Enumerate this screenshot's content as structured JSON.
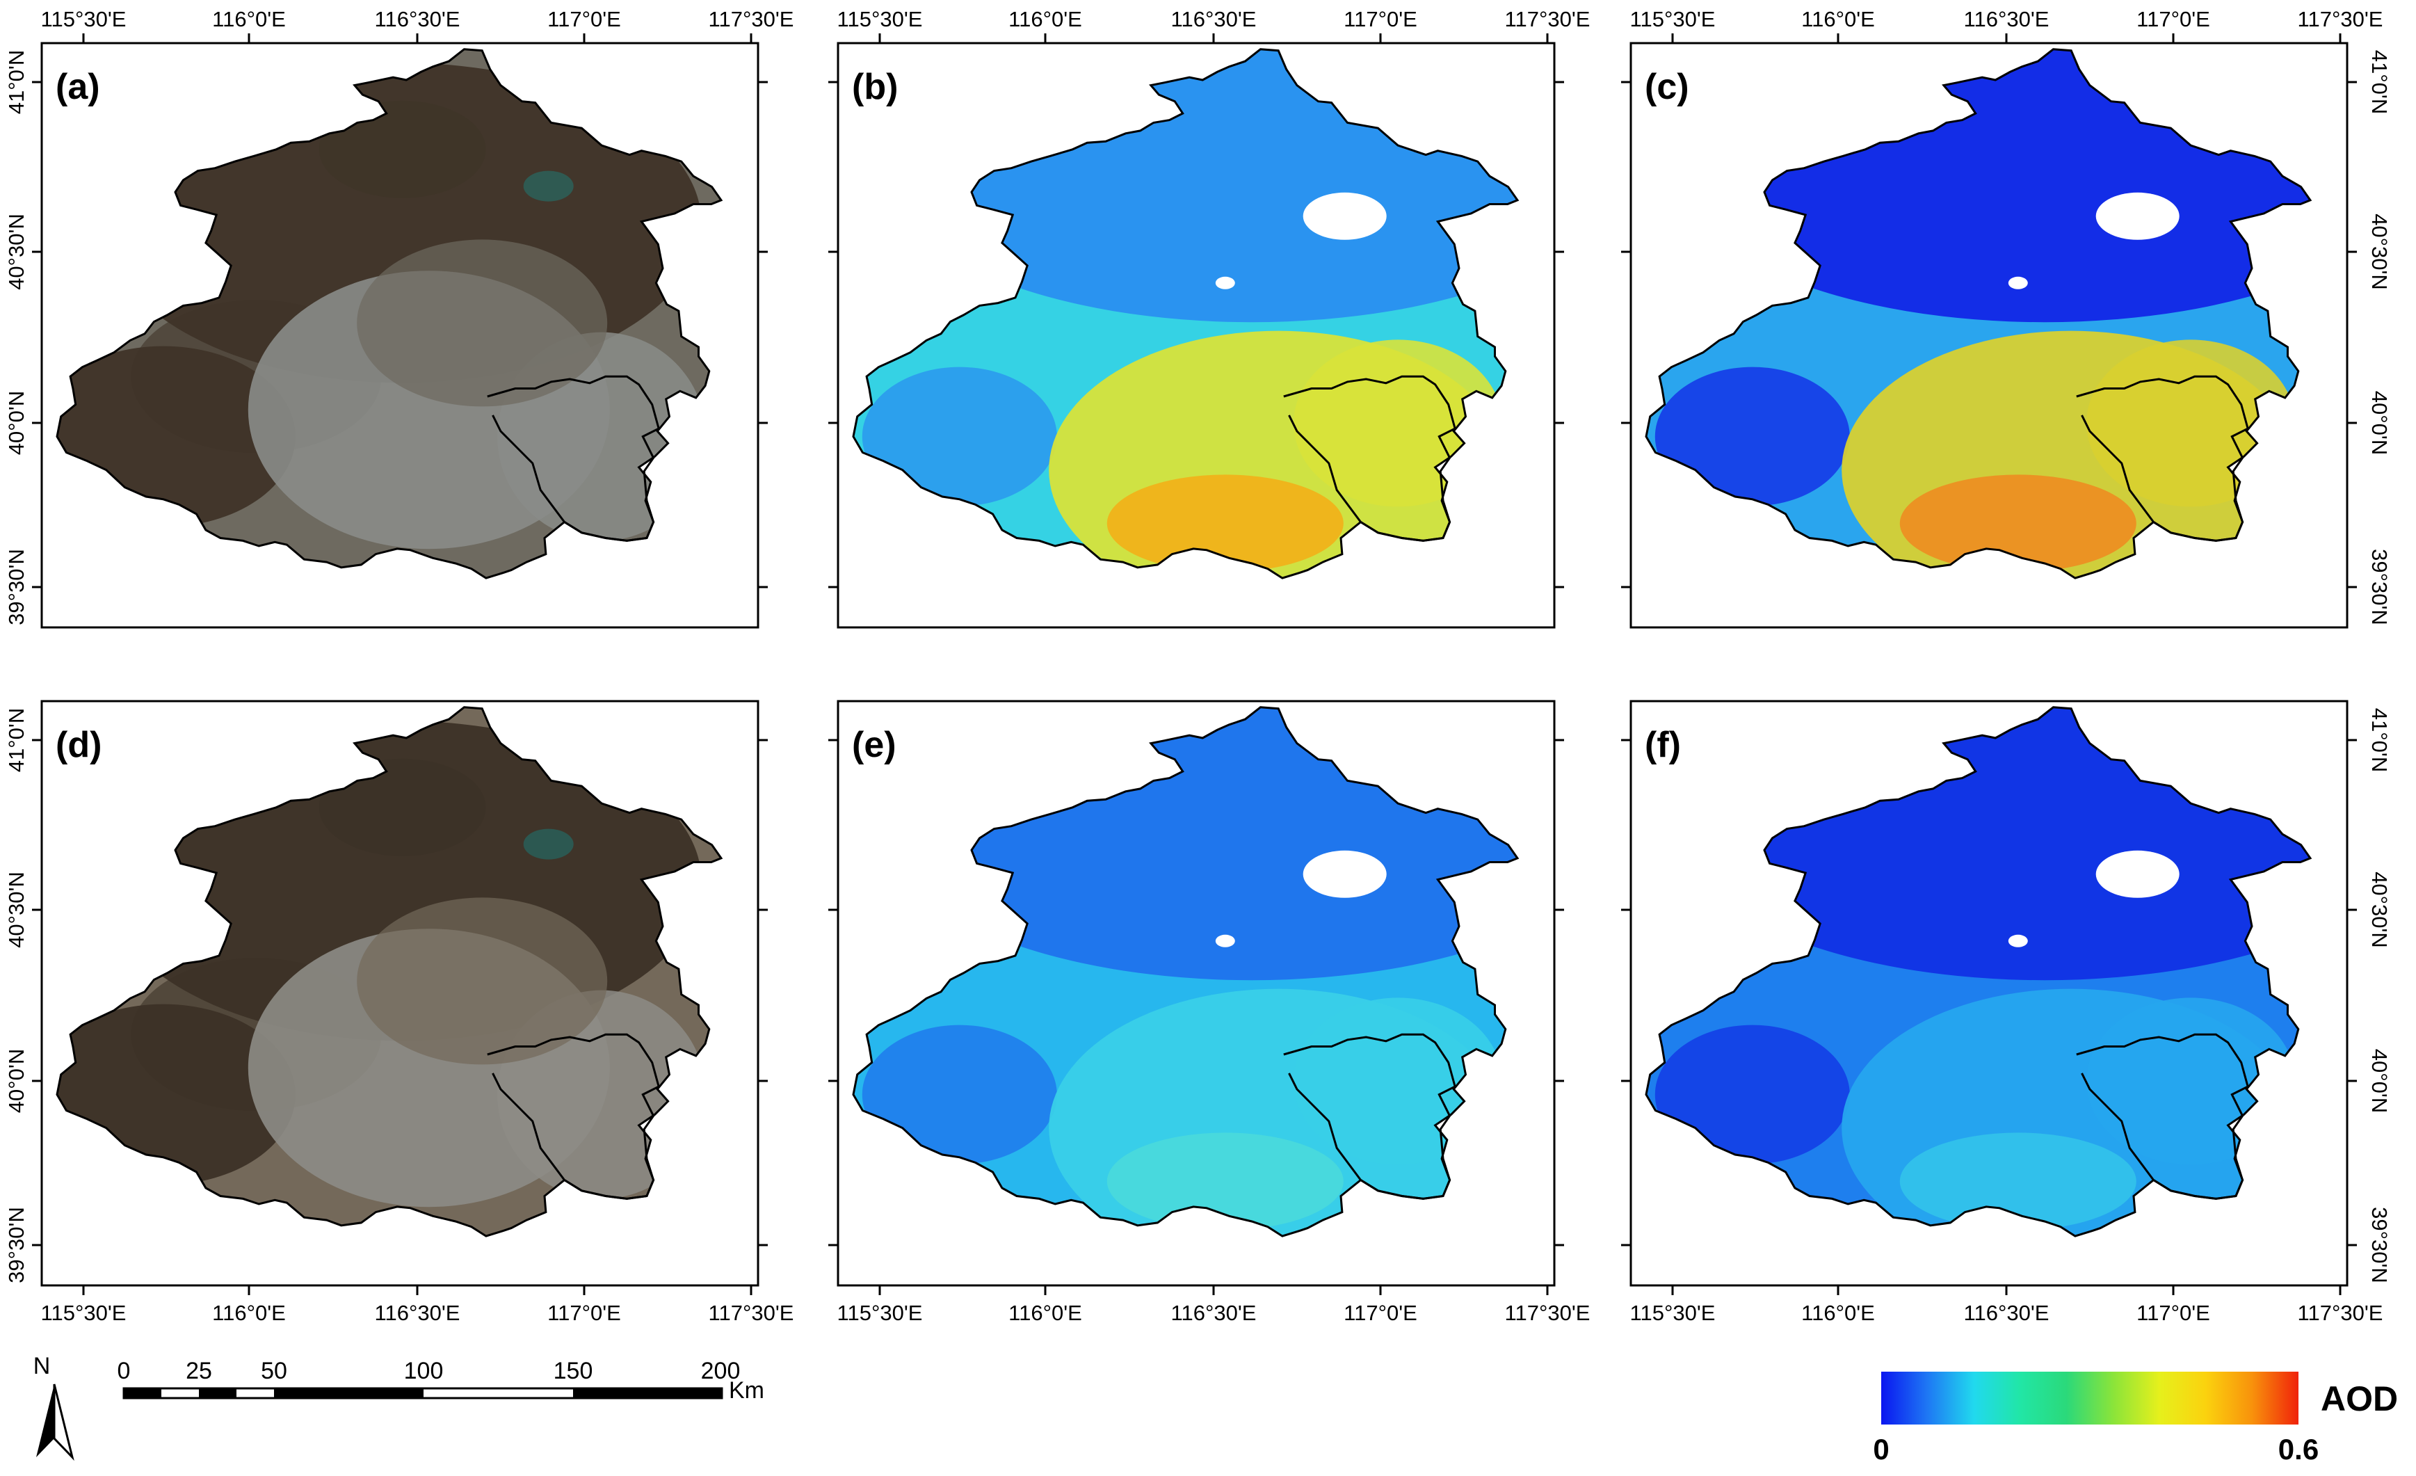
{
  "figure": {
    "panels": [
      {
        "id": "a",
        "label": "(a)",
        "type": "true-color",
        "colors": {
          "land": "#6e6a60",
          "mountain": "#3f3428",
          "urban": "#8a8c88",
          "water": "#2f5a52"
        }
      },
      {
        "id": "b",
        "label": "(b)",
        "type": "aod",
        "colors": {
          "north": "#2a8ff0",
          "middle": "#35d2e4",
          "south": "#d8e33a",
          "hot": "#f0b21a"
        }
      },
      {
        "id": "c",
        "label": "(c)",
        "type": "aod",
        "colors": {
          "north": "#1226e6",
          "middle": "#2aa5ee",
          "south": "#d8d030",
          "hot": "#ec8f22"
        }
      },
      {
        "id": "d",
        "label": "(d)",
        "type": "true-color",
        "colors": {
          "land": "#74695a",
          "mountain": "#3c3227",
          "urban": "#8d8c86",
          "water": "#2c5851"
        }
      },
      {
        "id": "e",
        "label": "(e)",
        "type": "aod",
        "colors": {
          "north": "#1f72ec",
          "middle": "#27b7ee",
          "south": "#39cfe8",
          "hot": "#49d9dc"
        }
      },
      {
        "id": "f",
        "label": "(f)",
        "type": "aod",
        "colors": {
          "north": "#1132e4",
          "middle": "#1e7fee",
          "south": "#26a6ee",
          "hot": "#31c2ea"
        }
      }
    ],
    "lon_labels": [
      "115°30'E",
      "116°0'E",
      "116°30'E",
      "117°0'E",
      "117°30'E"
    ],
    "lat_labels": [
      "41°0'N",
      "40°30'N",
      "40°0'N",
      "39°30'N"
    ],
    "north_arrow": {
      "label": "N"
    },
    "scale_bar": {
      "labels": [
        "0",
        "25",
        "50",
        "100",
        "150",
        "200"
      ],
      "unit": "Km"
    },
    "legend": {
      "title": "AOD",
      "min_label": "0",
      "max_label": "0.6",
      "colors": [
        "#0a16f0",
        "#1e78f4",
        "#21d9ee",
        "#21e6a6",
        "#2bd97a",
        "#8ae43a",
        "#e6f01c",
        "#fbd20e",
        "#f8920c",
        "#f0220a"
      ]
    }
  }
}
